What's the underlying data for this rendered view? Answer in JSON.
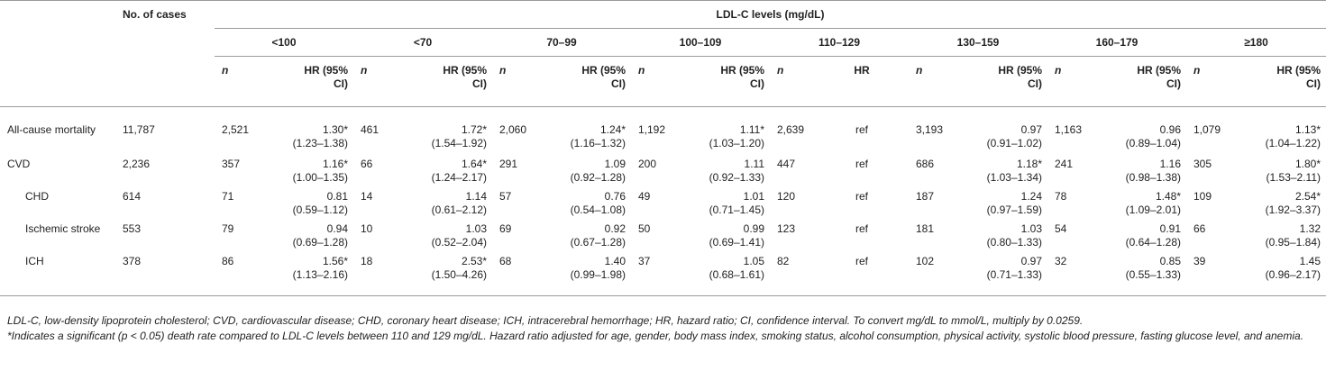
{
  "header": {
    "cases_label": "No. of cases",
    "ldl_label": "LDL-C levels (mg/dL)",
    "groups": [
      "<100",
      "<70",
      "70–99",
      "100–109",
      "110–129",
      "130–159",
      "160–179",
      "≥180"
    ],
    "n_label": "n",
    "hr_label_line1": "HR (95%",
    "hr_label_line2": "CI)",
    "hr_plain": "HR"
  },
  "rows": [
    {
      "label": "All-cause mortality",
      "cases": "11,787",
      "cells": [
        [
          "2,521",
          "1.30*",
          "(1.23–1.38)"
        ],
        [
          "461",
          "1.72*",
          "(1.54–1.92)"
        ],
        [
          "2,060",
          "1.24*",
          "(1.16–1.32)"
        ],
        [
          "1,192",
          "1.11*",
          "(1.03–1.20)"
        ],
        [
          "2,639",
          "ref",
          ""
        ],
        [
          "3,193",
          "0.97",
          "(0.91–1.02)"
        ],
        [
          "1,163",
          "0.96",
          "(0.89–1.04)"
        ],
        [
          "1,079",
          "1.13*",
          "(1.04–1.22)"
        ]
      ]
    },
    {
      "label": "CVD",
      "cases": "2,236",
      "cells": [
        [
          "357",
          "1.16*",
          "(1.00–1.35)"
        ],
        [
          "66",
          "1.64*",
          "(1.24–2.17)"
        ],
        [
          "291",
          "1.09",
          "(0.92–1.28)"
        ],
        [
          "200",
          "1.11",
          "(0.92–1.33)"
        ],
        [
          "447",
          "ref",
          ""
        ],
        [
          "686",
          "1.18*",
          "(1.03–1.34)"
        ],
        [
          "241",
          "1.16",
          "(0.98–1.38)"
        ],
        [
          "305",
          "1.80*",
          "(1.53–2.11)"
        ]
      ]
    },
    {
      "label": "CHD",
      "cases": "614",
      "cells": [
        [
          "71",
          "0.81",
          "(0.59–1.12)"
        ],
        [
          "14",
          "1.14",
          "(0.61–2.12)"
        ],
        [
          "57",
          "0.76",
          "(0.54–1.08)"
        ],
        [
          "49",
          "1.01",
          "(0.71–1.45)"
        ],
        [
          "120",
          "ref",
          ""
        ],
        [
          "187",
          "1.24",
          "(0.97–1.59)"
        ],
        [
          "78",
          "1.48*",
          "(1.09–2.01)"
        ],
        [
          "109",
          "2.54*",
          "(1.92–3.37)"
        ]
      ]
    },
    {
      "label": "Ischemic stroke",
      "cases": "553",
      "cells": [
        [
          "79",
          "0.94",
          "(0.69–1.28)"
        ],
        [
          "10",
          "1.03",
          "(0.52–2.04)"
        ],
        [
          "69",
          "0.92",
          "(0.67–1.28)"
        ],
        [
          "50",
          "0.99",
          "(0.69–1.41)"
        ],
        [
          "123",
          "ref",
          ""
        ],
        [
          "181",
          "1.03",
          "(0.80–1.33)"
        ],
        [
          "54",
          "0.91",
          "(0.64–1.28)"
        ],
        [
          "66",
          "1.32",
          "(0.95–1.84)"
        ]
      ]
    },
    {
      "label": "ICH",
      "cases": "378",
      "cells": [
        [
          "86",
          "1.56*",
          "(1.13–2.16)"
        ],
        [
          "18",
          "2.53*",
          "(1.50–4.26)"
        ],
        [
          "68",
          "1.40",
          "(0.99–1.98)"
        ],
        [
          "37",
          "1.05",
          "(0.68–1.61)"
        ],
        [
          "82",
          "ref",
          ""
        ],
        [
          "102",
          "0.97",
          "(0.71–1.33)"
        ],
        [
          "32",
          "0.85",
          "(0.55–1.33)"
        ],
        [
          "39",
          "1.45",
          "(0.96–2.17)"
        ]
      ]
    }
  ],
  "footnote1": "LDL-C, low-density lipoprotein cholesterol; CVD, cardiovascular disease; CHD, coronary heart disease; ICH, intracerebral hemorrhage; HR, hazard ratio; CI, confidence interval. To convert mg/dL to mmol/L, multiply by 0.0259.",
  "footnote2": "*Indicates a significant (p < 0.05) death rate compared to LDL-C levels between 110 and 129 mg/dL. Hazard ratio adjusted for age, gender, body mass index, smoking status, alcohol consumption, physical activity, systolic blood pressure, fasting glucose level, and anemia."
}
